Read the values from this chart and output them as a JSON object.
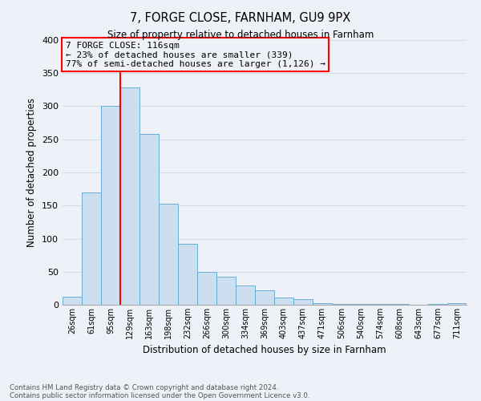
{
  "title1": "7, FORGE CLOSE, FARNHAM, GU9 9PX",
  "title2": "Size of property relative to detached houses in Farnham",
  "xlabel": "Distribution of detached houses by size in Farnham",
  "ylabel": "Number of detached properties",
  "footnote1": "Contains HM Land Registry data © Crown copyright and database right 2024.",
  "footnote2": "Contains public sector information licensed under the Open Government Licence v3.0.",
  "bar_labels": [
    "26sqm",
    "61sqm",
    "95sqm",
    "129sqm",
    "163sqm",
    "198sqm",
    "232sqm",
    "266sqm",
    "300sqm",
    "334sqm",
    "369sqm",
    "403sqm",
    "437sqm",
    "471sqm",
    "506sqm",
    "540sqm",
    "574sqm",
    "608sqm",
    "643sqm",
    "677sqm",
    "711sqm"
  ],
  "bar_values": [
    12,
    170,
    300,
    328,
    258,
    153,
    92,
    50,
    42,
    29,
    22,
    11,
    9,
    2,
    1,
    1,
    1,
    1,
    0,
    1,
    2
  ],
  "bar_color": "#ccdff0",
  "bar_edge_color": "#6aadd5",
  "ylim": [
    0,
    400
  ],
  "yticks": [
    0,
    50,
    100,
    150,
    200,
    250,
    300,
    350,
    400
  ],
  "annotation_text_line1": "7 FORGE CLOSE: 116sqm",
  "annotation_text_line2": "← 23% of detached houses are smaller (339)",
  "annotation_text_line3": "77% of semi-detached houses are larger (1,126) →",
  "grid_color": "#d4dce8",
  "background_color": "#eef2f8"
}
